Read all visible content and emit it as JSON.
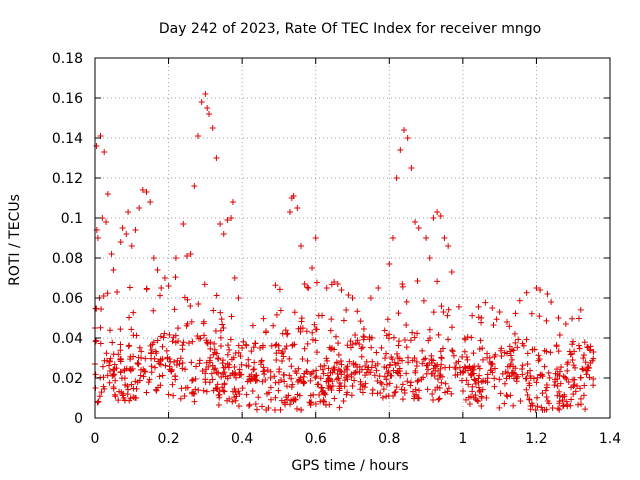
{
  "chart_data": {
    "type": "scatter",
    "title": "Day 242 of 2023, Rate Of TEC Index for receiver mngo",
    "xlabel": "GPS time / hours",
    "ylabel": "ROTI / TECUs",
    "xlim": [
      0,
      1.4
    ],
    "ylim": [
      0,
      0.18
    ],
    "xticks": [
      0,
      0.2,
      0.4,
      0.6,
      0.8,
      1,
      1.2,
      1.4
    ],
    "xtick_labels": [
      "0",
      "0.2",
      "0.4",
      "0.6",
      "0.8",
      "1",
      "1.2",
      "1.4"
    ],
    "yticks": [
      0,
      0.02,
      0.04,
      0.06,
      0.08,
      0.1,
      0.12,
      0.14,
      0.16,
      0.18
    ],
    "ytick_labels": [
      "0",
      "0.02",
      "0.04",
      "0.06",
      "0.08",
      "0.1",
      "0.12",
      "0.14",
      "0.16",
      "0.18"
    ],
    "grid": true,
    "marker": "+",
    "color": "#e00000",
    "series": [
      {
        "name": "ROTI",
        "points": [
          [
            0.0,
            0.045
          ],
          [
            0.0,
            0.027
          ],
          [
            0.004,
            0.136
          ],
          [
            0.005,
            0.094
          ],
          [
            0.008,
            0.09
          ],
          [
            0.012,
            0.06
          ],
          [
            0.015,
            0.141
          ],
          [
            0.02,
            0.1
          ],
          [
            0.025,
            0.133
          ],
          [
            0.03,
            0.098
          ],
          [
            0.035,
            0.112
          ],
          [
            0.045,
            0.082
          ],
          [
            0.05,
            0.074
          ],
          [
            0.06,
            0.063
          ],
          [
            0.07,
            0.088
          ],
          [
            0.075,
            0.095
          ],
          [
            0.085,
            0.092
          ],
          [
            0.09,
            0.103
          ],
          [
            0.1,
            0.086
          ],
          [
            0.11,
            0.094
          ],
          [
            0.12,
            0.105
          ],
          [
            0.13,
            0.114
          ],
          [
            0.14,
            0.113
          ],
          [
            0.15,
            0.108
          ],
          [
            0.16,
            0.08
          ],
          [
            0.17,
            0.074
          ],
          [
            0.18,
            0.065
          ],
          [
            0.19,
            0.07
          ],
          [
            0.2,
            0.066
          ],
          [
            0.22,
            0.08
          ],
          [
            0.24,
            0.097
          ],
          [
            0.25,
            0.081
          ],
          [
            0.26,
            0.082
          ],
          [
            0.27,
            0.116
          ],
          [
            0.28,
            0.141
          ],
          [
            0.29,
            0.158
          ],
          [
            0.3,
            0.162
          ],
          [
            0.305,
            0.155
          ],
          [
            0.31,
            0.152
          ],
          [
            0.32,
            0.145
          ],
          [
            0.33,
            0.13
          ],
          [
            0.34,
            0.097
          ],
          [
            0.35,
            0.092
          ],
          [
            0.36,
            0.099
          ],
          [
            0.37,
            0.1
          ],
          [
            0.375,
            0.108
          ],
          [
            0.38,
            0.07
          ],
          [
            0.39,
            0.06
          ],
          [
            0.53,
            0.103
          ],
          [
            0.535,
            0.11
          ],
          [
            0.54,
            0.111
          ],
          [
            0.55,
            0.105
          ],
          [
            0.56,
            0.086
          ],
          [
            0.57,
            0.067
          ],
          [
            0.58,
            0.065
          ],
          [
            0.59,
            0.075
          ],
          [
            0.6,
            0.09
          ],
          [
            0.63,
            0.065
          ],
          [
            0.65,
            0.068
          ],
          [
            0.66,
            0.067
          ],
          [
            0.67,
            0.064
          ],
          [
            0.7,
            0.06
          ],
          [
            0.75,
            0.06
          ],
          [
            0.77,
            0.065
          ],
          [
            0.8,
            0.077
          ],
          [
            0.81,
            0.09
          ],
          [
            0.82,
            0.12
          ],
          [
            0.83,
            0.134
          ],
          [
            0.84,
            0.144
          ],
          [
            0.85,
            0.14
          ],
          [
            0.86,
            0.125
          ],
          [
            0.87,
            0.098
          ],
          [
            0.88,
            0.095
          ],
          [
            0.9,
            0.09
          ],
          [
            0.91,
            0.08
          ],
          [
            0.92,
            0.1
          ],
          [
            0.93,
            0.103
          ],
          [
            0.94,
            0.101
          ],
          [
            0.95,
            0.09
          ],
          [
            0.96,
            0.086
          ],
          [
            0.97,
            0.073
          ],
          [
            1.05,
            0.05
          ],
          [
            1.08,
            0.055
          ],
          [
            1.1,
            0.053
          ],
          [
            1.12,
            0.048
          ],
          [
            1.2,
            0.065
          ],
          [
            1.21,
            0.064
          ],
          [
            1.23,
            0.062
          ],
          [
            1.24,
            0.058
          ],
          [
            1.26,
            0.05
          ],
          [
            1.28,
            0.047
          ]
        ],
        "background_seed": 20230830,
        "background_count": 1120
      }
    ]
  }
}
